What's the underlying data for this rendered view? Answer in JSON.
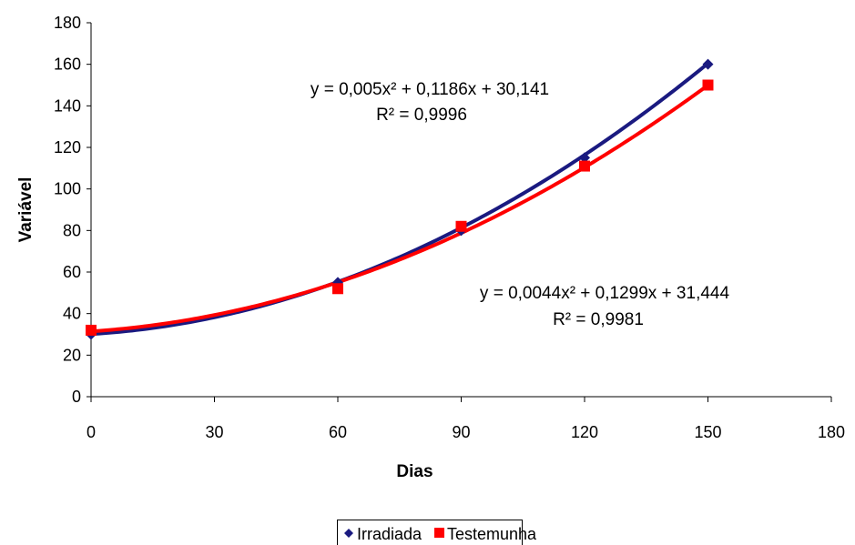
{
  "chart_data": {
    "type": "scatter",
    "xlabel": "Dias",
    "ylabel": "Variável",
    "xlim": [
      0,
      180
    ],
    "ylim": [
      0,
      180
    ],
    "xticks": [
      0,
      30,
      60,
      90,
      120,
      150,
      180
    ],
    "yticks": [
      0,
      20,
      40,
      60,
      80,
      100,
      120,
      140,
      160,
      180
    ],
    "grid": false,
    "legend_position": "bottom",
    "series": [
      {
        "name": "Irradiada",
        "marker": "diamond",
        "color": "#1a1a80",
        "x": [
          0,
          60,
          90,
          120,
          150
        ],
        "y": [
          30,
          55,
          80,
          115,
          160
        ],
        "trendline": {
          "type": "polynomial",
          "coefficients": [
            0.005,
            0.1186,
            30.141
          ],
          "equation": "y = 0,005x² + 0,1186x + 30,141",
          "r2": "R² = 0,9996"
        }
      },
      {
        "name": "Testemunha",
        "marker": "square",
        "color": "#ff0000",
        "x": [
          0,
          60,
          90,
          120,
          150
        ],
        "y": [
          32,
          52,
          82,
          111,
          150
        ],
        "trendline": {
          "type": "polynomial",
          "coefficients": [
            0.0044,
            0.1299,
            31.444
          ],
          "equation": "y = 0,0044x² + 0,1299x + 31,444",
          "r2": "R² = 0,9981"
        }
      }
    ]
  }
}
